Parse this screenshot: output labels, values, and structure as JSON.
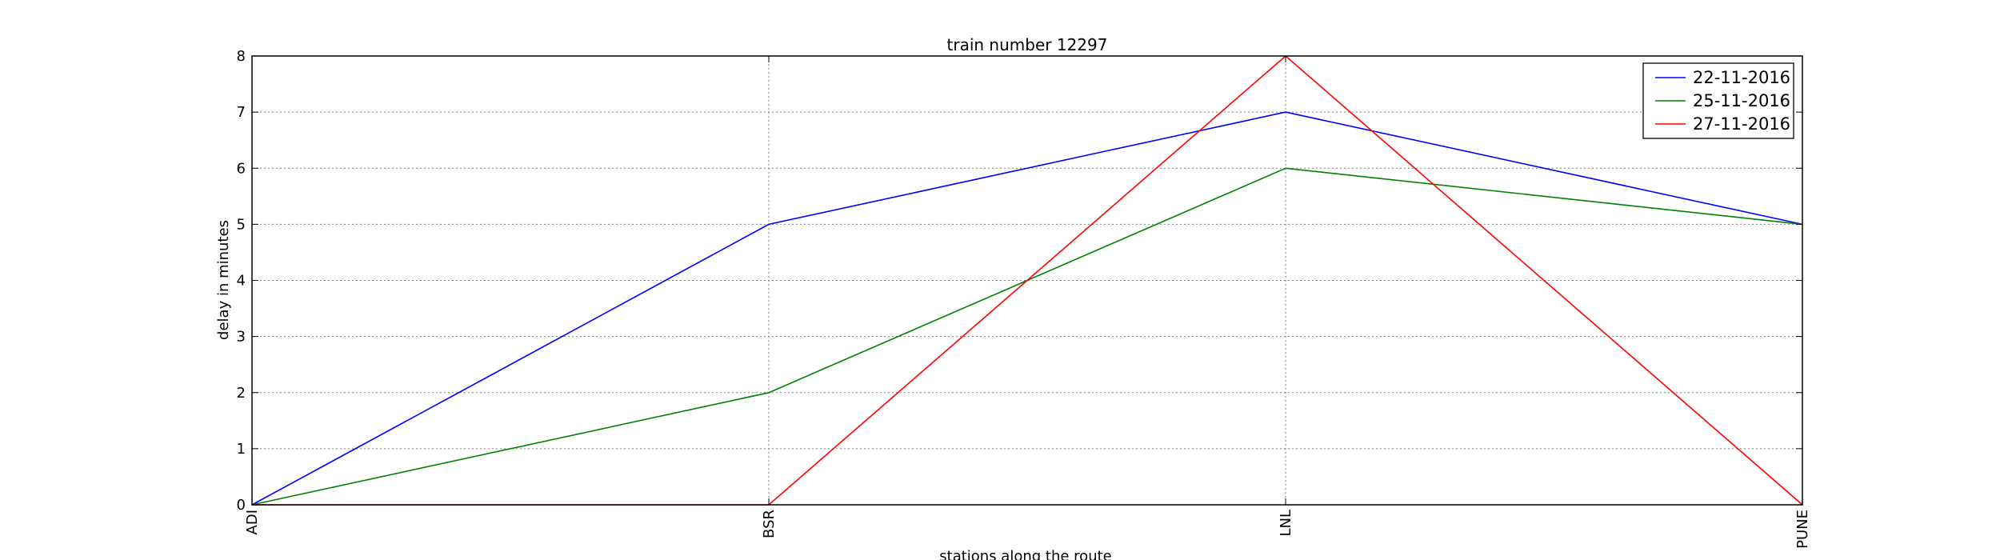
{
  "chart_data": {
    "type": "line",
    "title": "train number 12297",
    "xlabel": "stations along the route",
    "ylabel": "delay in minutes",
    "categories": [
      "ADI",
      "BSR",
      "LNL",
      "PUNE"
    ],
    "ylim": [
      0,
      8
    ],
    "yticks": [
      "0",
      "1",
      "2",
      "3",
      "4",
      "5",
      "6",
      "7",
      "8"
    ],
    "grid": true,
    "legend_position": "top-right",
    "series": [
      {
        "name": "22-11-2016",
        "color": "#0000ff",
        "values": [
          0,
          5,
          7,
          5
        ]
      },
      {
        "name": "25-11-2016",
        "color": "#008000",
        "values": [
          0,
          2,
          6,
          5
        ]
      },
      {
        "name": "27-11-2016",
        "color": "#ff0000",
        "values": [
          0,
          0,
          8,
          0
        ]
      }
    ]
  }
}
